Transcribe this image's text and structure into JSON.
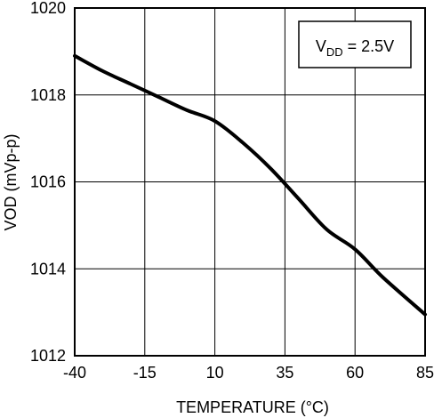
{
  "chart_data": {
    "type": "line",
    "xlabel": "TEMPERATURE (°C)",
    "ylabel": "VOD (mVp-p)",
    "xlim": [
      -40,
      85
    ],
    "ylim": [
      1012,
      1020
    ],
    "x_ticks": [
      "-40",
      "-15",
      "10",
      "35",
      "60",
      "85"
    ],
    "y_ticks": [
      "1012",
      "1014",
      "1016",
      "1018",
      "1020"
    ],
    "grid": true,
    "annotation": {
      "base": "V",
      "subscript": "DD",
      "rest": " = 2.5V"
    },
    "series": [
      {
        "x": [
          -40,
          -30,
          -20,
          -10,
          0,
          10,
          20,
          30,
          40,
          50,
          60,
          70,
          85
        ],
        "y": [
          1018.9,
          1018.55,
          1018.25,
          1017.95,
          1017.65,
          1017.4,
          1016.9,
          1016.3,
          1015.6,
          1014.9,
          1014.45,
          1013.8,
          1012.95
        ]
      }
    ],
    "line_color": "#000000"
  }
}
